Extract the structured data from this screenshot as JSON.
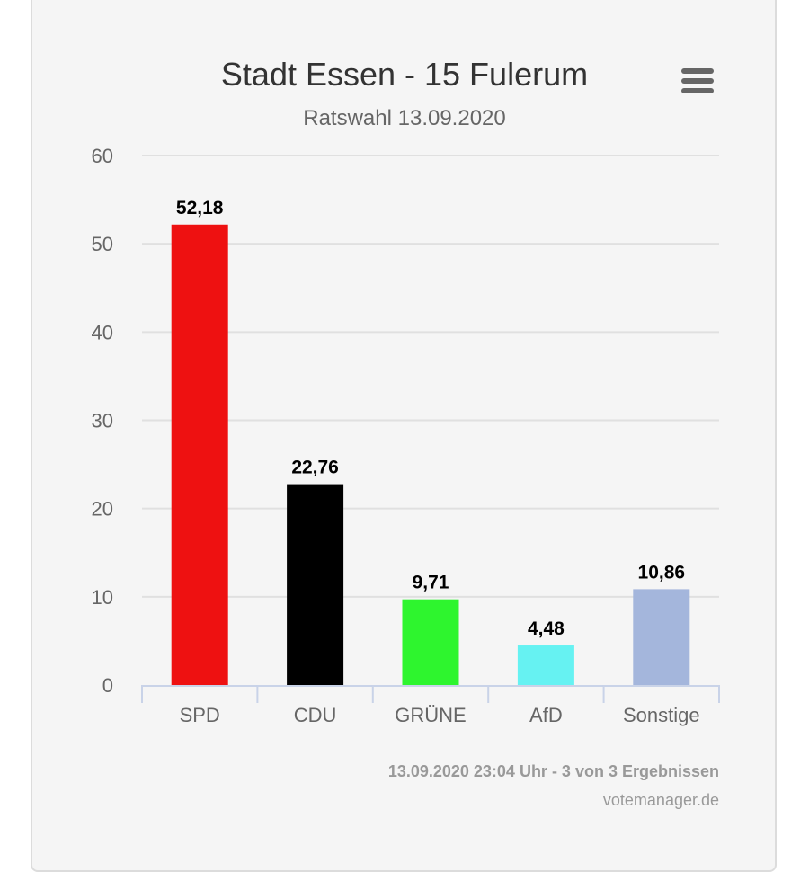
{
  "chart_data": {
    "type": "bar",
    "title": "Stadt Essen - 15 Fulerum",
    "subtitle": "Ratswahl 13.09.2020",
    "categories": [
      "SPD",
      "CDU",
      "GRÜNE",
      "AfD",
      "Sonstige"
    ],
    "values": [
      52.18,
      22.76,
      9.71,
      4.48,
      10.86
    ],
    "data_labels": [
      "52,18",
      "22,76",
      "9,71",
      "4,48",
      "10,86"
    ],
    "colors": [
      "#ee1111",
      "#000000",
      "#2ef52e",
      "#66f2f2",
      "#a4b6dc"
    ],
    "ylim": [
      0,
      60
    ],
    "yticks": [
      0,
      10,
      20,
      30,
      40,
      50,
      60
    ],
    "grid": true,
    "legend": "none"
  },
  "footer": {
    "credits": "13.09.2020 23:04 Uhr - 3 von 3 Ergebnissen",
    "source": "votemanager.de"
  },
  "icons": {
    "menu": "hamburger-menu-icon"
  }
}
